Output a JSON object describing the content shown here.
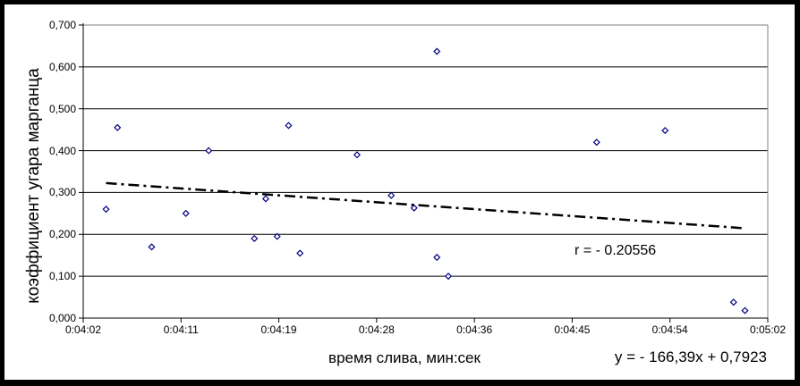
{
  "chart_data": {
    "type": "scatter",
    "title": "",
    "xlabel": "время слива, мин:сек",
    "ylabel": "коэффициент угара марганца",
    "r_label": "r = - 0.20556",
    "grid": true,
    "legend": false,
    "ylim": [
      0.0,
      0.7
    ],
    "x_range": [
      "0:04:02",
      "0:05:02"
    ],
    "x_ticks": [
      "0:04:02",
      "0:04:11",
      "0:04:19",
      "0:04:28",
      "0:04:36",
      "0:04:45",
      "0:04:54",
      "0:05:02"
    ],
    "y_ticks": [
      {
        "label": "0,000",
        "value": 0.0
      },
      {
        "label": "0,100",
        "value": 0.1
      },
      {
        "label": "0,200",
        "value": 0.2
      },
      {
        "label": "0,300",
        "value": 0.3
      },
      {
        "label": "0,400",
        "value": 0.4
      },
      {
        "label": "0,500",
        "value": 0.5
      },
      {
        "label": "0,600",
        "value": 0.6
      },
      {
        "label": "0,700",
        "value": 0.7
      }
    ],
    "points": [
      {
        "x": "0:04:04",
        "y": 0.26
      },
      {
        "x": "0:04:05",
        "y": 0.455
      },
      {
        "x": "0:04:08",
        "y": 0.17
      },
      {
        "x": "0:04:11",
        "y": 0.25
      },
      {
        "x": "0:04:13",
        "y": 0.4
      },
      {
        "x": "0:04:17",
        "y": 0.19
      },
      {
        "x": "0:04:18",
        "y": 0.285
      },
      {
        "x": "0:04:19",
        "y": 0.195
      },
      {
        "x": "0:04:20",
        "y": 0.46
      },
      {
        "x": "0:04:21",
        "y": 0.155
      },
      {
        "x": "0:04:26",
        "y": 0.39
      },
      {
        "x": "0:04:29",
        "y": 0.293
      },
      {
        "x": "0:04:31",
        "y": 0.263
      },
      {
        "x": "0:04:33",
        "y": 0.637
      },
      {
        "x": "0:04:33",
        "y": 0.145
      },
      {
        "x": "0:04:34",
        "y": 0.1
      },
      {
        "x": "0:04:47",
        "y": 0.42
      },
      {
        "x": "0:04:53",
        "y": 0.448
      },
      {
        "x": "0:04:59",
        "y": 0.038
      },
      {
        "x": "0:05:00",
        "y": 0.018
      }
    ],
    "trendline": {
      "equation_label": "y = - 166,39x + 0,7923",
      "slope_per_day": -166.39,
      "intercept": 0.7923,
      "x_start": "0:04:04",
      "x_end": "0:05:00",
      "style": "dash-dot"
    },
    "colors": {
      "marker": "#000080",
      "grid": "#000000",
      "axis": "#000000",
      "plot_border": "#808080",
      "trendline": "#000000",
      "text": "#000000",
      "frame": "#000000",
      "background": "#ffffff"
    }
  }
}
